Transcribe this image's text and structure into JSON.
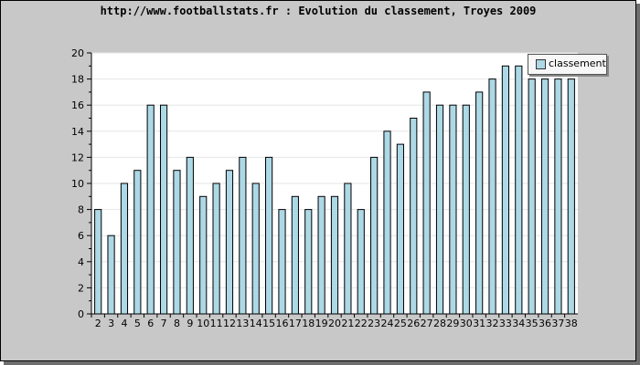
{
  "chart_data": {
    "type": "bar",
    "title": "http://www.footballstats.fr : Evolution du classement, Troyes 2009",
    "xlabel": "",
    "ylabel": "",
    "ylim": [
      0,
      20
    ],
    "yticks": [
      "0",
      "2",
      "4",
      "6",
      "8",
      "10",
      "12",
      "14",
      "16",
      "18",
      "20"
    ],
    "categories": [
      "2",
      "3",
      "4",
      "5",
      "6",
      "7",
      "8",
      "9",
      "10",
      "11",
      "12",
      "13",
      "14",
      "15",
      "16",
      "17",
      "18",
      "19",
      "20",
      "21",
      "22",
      "23",
      "24",
      "25",
      "26",
      "27",
      "28",
      "29",
      "30",
      "31",
      "32",
      "33",
      "34",
      "35",
      "36",
      "37",
      "38"
    ],
    "series": [
      {
        "name": "classement",
        "values": [
          8,
          6,
          10,
          11,
          16,
          16,
          11,
          12,
          9,
          10,
          11,
          12,
          10,
          12,
          8,
          9,
          8,
          9,
          9,
          10,
          8,
          12,
          14,
          13,
          15,
          17,
          16,
          16,
          16,
          17,
          18,
          19,
          19,
          18,
          18,
          18,
          18
        ]
      }
    ],
    "bar_color": "#add8e6",
    "grid": true,
    "legend_position": "top-right"
  }
}
